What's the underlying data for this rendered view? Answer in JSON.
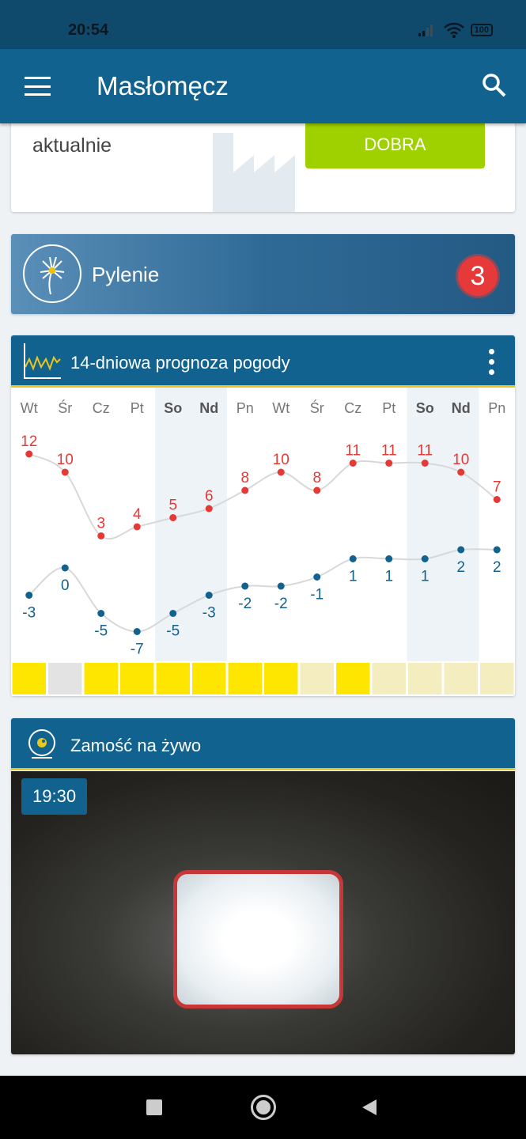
{
  "status_bar": {
    "time": "20:54",
    "battery": "100"
  },
  "app_bar": {
    "title": "Masłomęcz"
  },
  "air_quality": {
    "label": "aktualnie",
    "status": "DOBRA",
    "status_color": "#9fd100"
  },
  "pollen": {
    "label": "Pylenie",
    "count": "3"
  },
  "forecast": {
    "title": "14-dniowa prognoza pogody",
    "chart_data": {
      "type": "line",
      "categories": [
        "Wt",
        "Śr",
        "Cz",
        "Pt",
        "So",
        "Nd",
        "Pn",
        "Wt",
        "Śr",
        "Cz",
        "Pt",
        "So",
        "Nd",
        "Pn"
      ],
      "weekend": [
        false,
        false,
        false,
        false,
        true,
        true,
        false,
        false,
        false,
        false,
        false,
        true,
        true,
        false
      ],
      "series": [
        {
          "values": [
            12,
            10,
            3,
            4,
            5,
            6,
            8,
            10,
            8,
            11,
            11,
            11,
            10,
            7
          ],
          "color": "#e53935"
        },
        {
          "values": [
            -3,
            0,
            -5,
            -7,
            -5,
            -3,
            -2,
            -2,
            -1,
            1,
            1,
            1,
            2,
            2
          ],
          "color": "#12628f"
        }
      ],
      "condition_colors": [
        "#ffe600",
        "#e3e3e3",
        "#ffe600",
        "#ffe600",
        "#ffe600",
        "#ffe600",
        "#ffe600",
        "#ffe600",
        "#f3edc0",
        "#ffe600",
        "#f3edc0",
        "#f3edc0",
        "#f3edc0",
        "#f3edc0"
      ]
    }
  },
  "webcam": {
    "title": "Zamość na żywo",
    "time": "19:30"
  }
}
